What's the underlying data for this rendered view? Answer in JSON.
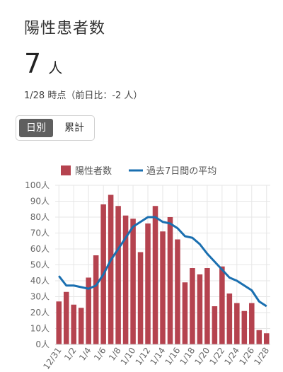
{
  "header": {
    "title": "陽性患者数",
    "count": "7",
    "unit": "人",
    "subtitle": "1/28 時点（前日比：-2 人）"
  },
  "toggle": {
    "daily": "日別",
    "cumulative": "累計"
  },
  "colors": {
    "bar": "#b5434f",
    "line": "#1a6fb0",
    "grid": "#e6e6e6",
    "toggle_active": "#5f5f5f"
  },
  "chart_data": {
    "type": "bar",
    "legend": [
      "陽性者数",
      "過去7日間の平均"
    ],
    "y_ticks": [
      "100人",
      "90人",
      "80人",
      "70人",
      "60人",
      "50人",
      "40人",
      "30人",
      "20人",
      "10人",
      "0人"
    ],
    "ylim": [
      0,
      100
    ],
    "x_tick_labels": [
      "12/31",
      "1/2",
      "1/4",
      "1/6",
      "1/8",
      "1/10",
      "1/12",
      "1/14",
      "1/16",
      "1/18",
      "1/20",
      "1/22",
      "1/24",
      "1/26",
      "1/28"
    ],
    "categories": [
      "12/31",
      "1/1",
      "1/2",
      "1/3",
      "1/4",
      "1/5",
      "1/6",
      "1/7",
      "1/8",
      "1/9",
      "1/10",
      "1/11",
      "1/12",
      "1/13",
      "1/14",
      "1/15",
      "1/16",
      "1/17",
      "1/18",
      "1/19",
      "1/20",
      "1/21",
      "1/22",
      "1/23",
      "1/24",
      "1/25",
      "1/26",
      "1/27",
      "1/28"
    ],
    "series": [
      {
        "name": "陽性者数",
        "type": "bar",
        "values": [
          27,
          33,
          25,
          23,
          42,
          56,
          88,
          94,
          87,
          81,
          79,
          58,
          76,
          87,
          71,
          80,
          66,
          39,
          48,
          44,
          48,
          24,
          49,
          32,
          26,
          21,
          26,
          9,
          7
        ]
      },
      {
        "name": "過去7日間の平均",
        "type": "line",
        "values": [
          43,
          37,
          37,
          36,
          35,
          37,
          44,
          53,
          60,
          67,
          74,
          77,
          80,
          80,
          77,
          76,
          73,
          68,
          67,
          63,
          57,
          52,
          47,
          42,
          40,
          37,
          34,
          27,
          24
        ]
      }
    ]
  }
}
